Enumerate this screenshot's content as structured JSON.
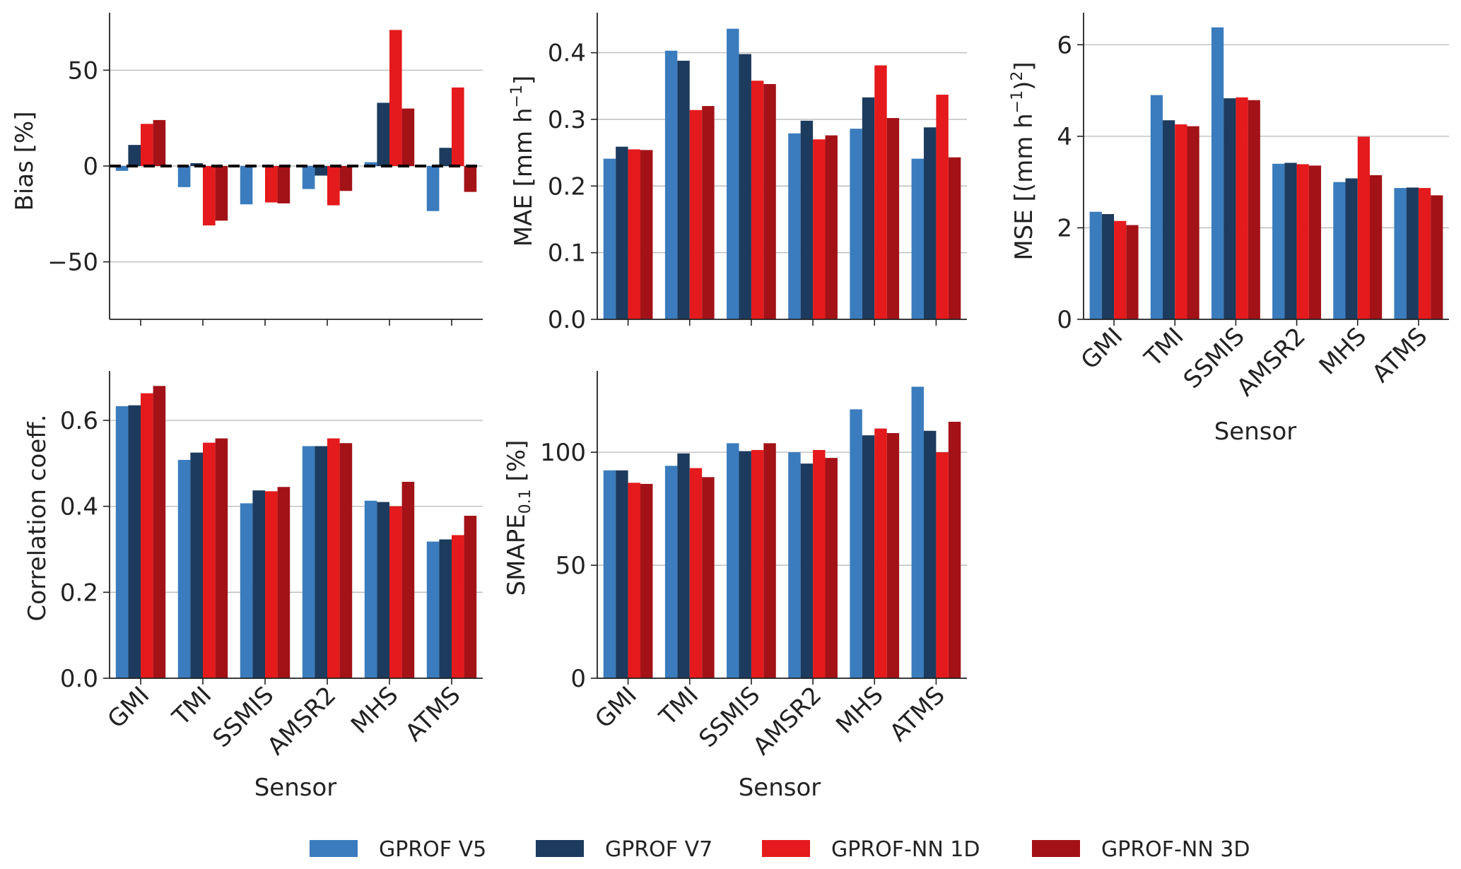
{
  "colors": {
    "gprof_v5": "#3a7cbd",
    "gprof_v7": "#1c3b5e",
    "gprof_nn_1d": "#e41a1c",
    "gprof_nn_3d": "#a31217",
    "grid": "#b8b8b8",
    "axis": "#222222"
  },
  "legend": [
    "GPROF V5",
    "GPROF V7",
    "GPROF-NN 1D",
    "GPROF-NN 3D"
  ],
  "chart_data": [
    {
      "id": "bias",
      "type": "bar",
      "categories": [
        "GMI",
        "TMI",
        "SSMIS",
        "AMSR2",
        "MHS",
        "ATMS"
      ],
      "ylabel": "Bias [%]",
      "ylim": [
        -80,
        80
      ],
      "yticks": [
        -50,
        0,
        50
      ],
      "ytick_labels": [
        "−50",
        "0",
        "50"
      ],
      "reference_line": 0,
      "show_xticklabels": false,
      "xlabel": "",
      "series": [
        {
          "name": "GPROF V5",
          "values": [
            -2.5,
            -11,
            -20,
            -12,
            2,
            -23.5
          ]
        },
        {
          "name": "GPROF V7",
          "values": [
            11,
            1.5,
            0,
            -5,
            33,
            9.5
          ]
        },
        {
          "name": "GPROF-NN 1D",
          "values": [
            22,
            -31,
            -19,
            -20.5,
            71,
            41
          ]
        },
        {
          "name": "GPROF-NN 3D",
          "values": [
            24,
            -28.5,
            -19.5,
            -13,
            30,
            -13.5
          ]
        }
      ]
    },
    {
      "id": "mae",
      "type": "bar",
      "categories": [
        "GMI",
        "TMI",
        "SSMIS",
        "AMSR2",
        "MHS",
        "ATMS"
      ],
      "ylabel_main": "MAE [mm h",
      "ylabel_sup": "−1",
      "ylabel_end": "]",
      "ylim": [
        0,
        0.46
      ],
      "yticks": [
        0.0,
        0.1,
        0.2,
        0.3,
        0.4
      ],
      "ytick_labels": [
        "0.0",
        "0.1",
        "0.2",
        "0.3",
        "0.4"
      ],
      "show_xticklabels": false,
      "xlabel": "",
      "series": [
        {
          "name": "GPROF V5",
          "values": [
            0.241,
            0.403,
            0.436,
            0.279,
            0.286,
            0.241
          ]
        },
        {
          "name": "GPROF V7",
          "values": [
            0.259,
            0.388,
            0.398,
            0.298,
            0.333,
            0.288
          ]
        },
        {
          "name": "GPROF-NN 1D",
          "values": [
            0.255,
            0.314,
            0.358,
            0.27,
            0.381,
            0.337
          ]
        },
        {
          "name": "GPROF-NN 3D",
          "values": [
            0.254,
            0.32,
            0.353,
            0.276,
            0.302,
            0.243
          ]
        }
      ]
    },
    {
      "id": "mse",
      "type": "bar",
      "categories": [
        "GMI",
        "TMI",
        "SSMIS",
        "AMSR2",
        "MHS",
        "ATMS"
      ],
      "ylabel_main": "MSE [(mm h",
      "ylabel_sup": "−1",
      "ylabel_mid": ")",
      "ylabel_sup2": "2",
      "ylabel_end": "]",
      "ylim": [
        0,
        6.7
      ],
      "yticks": [
        0,
        2,
        4,
        6
      ],
      "ytick_labels": [
        "0",
        "2",
        "4",
        "6"
      ],
      "show_xticklabels": true,
      "xlabel": "Sensor",
      "series": [
        {
          "name": "GPROF V5",
          "values": [
            2.35,
            4.9,
            6.38,
            3.4,
            3.0,
            2.87
          ]
        },
        {
          "name": "GPROF V7",
          "values": [
            2.3,
            4.35,
            4.83,
            3.42,
            3.08,
            2.88
          ]
        },
        {
          "name": "GPROF-NN 1D",
          "values": [
            2.15,
            4.26,
            4.85,
            3.39,
            3.99,
            2.87
          ]
        },
        {
          "name": "GPROF-NN 3D",
          "values": [
            2.06,
            4.22,
            4.79,
            3.36,
            3.15,
            2.71
          ]
        }
      ]
    },
    {
      "id": "corr",
      "type": "bar",
      "categories": [
        "GMI",
        "TMI",
        "SSMIS",
        "AMSR2",
        "MHS",
        "ATMS"
      ],
      "ylabel": "Correlation coeff.",
      "ylim": [
        0,
        0.715
      ],
      "yticks": [
        0.0,
        0.2,
        0.4,
        0.6
      ],
      "ytick_labels": [
        "0.0",
        "0.2",
        "0.4",
        "0.6"
      ],
      "show_xticklabels": true,
      "xlabel": "Sensor",
      "series": [
        {
          "name": "GPROF V5",
          "values": [
            0.633,
            0.508,
            0.407,
            0.54,
            0.413,
            0.318
          ]
        },
        {
          "name": "GPROF V7",
          "values": [
            0.635,
            0.525,
            0.437,
            0.54,
            0.41,
            0.323
          ]
        },
        {
          "name": "GPROF-NN 1D",
          "values": [
            0.663,
            0.548,
            0.435,
            0.558,
            0.4,
            0.333
          ]
        },
        {
          "name": "GPROF-NN 3D",
          "values": [
            0.68,
            0.558,
            0.445,
            0.547,
            0.457,
            0.378
          ]
        }
      ]
    },
    {
      "id": "smape",
      "type": "bar",
      "categories": [
        "GMI",
        "TMI",
        "SSMIS",
        "AMSR2",
        "MHS",
        "ATMS"
      ],
      "ylabel_main": "SMAPE",
      "ylabel_sub": "0.1",
      "ylabel_end": " [%]",
      "ylim": [
        0,
        136
      ],
      "yticks": [
        0,
        50,
        100
      ],
      "ytick_labels": [
        "0",
        "50",
        "100"
      ],
      "show_xticklabels": true,
      "xlabel": "Sensor",
      "series": [
        {
          "name": "GPROF V5",
          "values": [
            92,
            94,
            104,
            100,
            119,
            129
          ]
        },
        {
          "name": "GPROF V7",
          "values": [
            92,
            99.5,
            100.5,
            95,
            107.5,
            109.5
          ]
        },
        {
          "name": "GPROF-NN 1D",
          "values": [
            86.5,
            93,
            101,
            101,
            110.5,
            100
          ]
        },
        {
          "name": "GPROF-NN 3D",
          "values": [
            86,
            89,
            104,
            97.5,
            108.5,
            113.5
          ]
        }
      ]
    }
  ]
}
